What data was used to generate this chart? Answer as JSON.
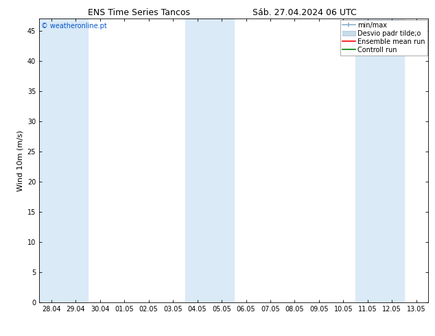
{
  "title_left": "ENS Time Series Tancos",
  "title_right": "Sáb. 27.04.2024 06 UTC",
  "ylabel": "Wind 10m (m/s)",
  "copyright": "© weatheronline.pt",
  "x_labels": [
    "28.04",
    "29.04",
    "30.04",
    "01.05",
    "02.05",
    "03.05",
    "04.05",
    "05.05",
    "06.05",
    "07.05",
    "08.05",
    "09.05",
    "10.05",
    "11.05",
    "12.05",
    "13.05"
  ],
  "x_ticks": [
    0,
    1,
    2,
    3,
    4,
    5,
    6,
    7,
    8,
    9,
    10,
    11,
    12,
    13,
    14,
    15
  ],
  "ylim": [
    0,
    47
  ],
  "yticks": [
    0,
    5,
    10,
    15,
    20,
    25,
    30,
    35,
    40,
    45
  ],
  "shaded_indices": [
    0,
    1,
    6,
    7,
    13,
    14
  ],
  "shade_color": "#daeaf7",
  "bg_color": "#ffffff",
  "title_fontsize": 9,
  "axis_fontsize": 7,
  "ylabel_fontsize": 8,
  "copyright_fontsize": 7,
  "legend_fontsize": 7,
  "figsize": [
    6.34,
    4.9
  ],
  "dpi": 100
}
